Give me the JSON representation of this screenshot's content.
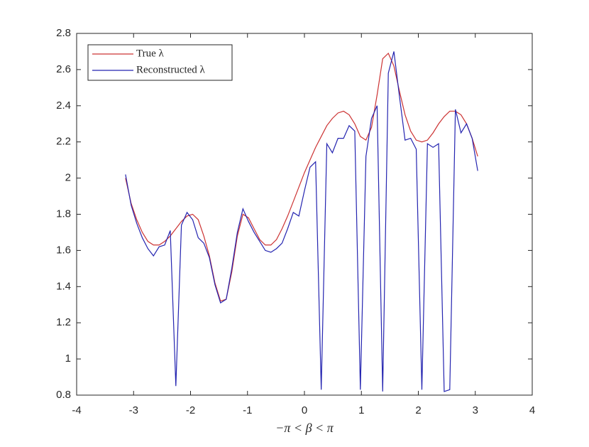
{
  "chart_data": {
    "type": "line",
    "xlabel": "−π < β < π",
    "x": [
      -3.142,
      -3.043,
      -2.945,
      -2.847,
      -2.749,
      -2.651,
      -2.552,
      -2.454,
      -2.356,
      -2.258,
      -2.16,
      -2.062,
      -1.963,
      -1.865,
      -1.767,
      -1.669,
      -1.571,
      -1.473,
      -1.374,
      -1.276,
      -1.178,
      -1.08,
      -0.982,
      -0.884,
      -0.785,
      -0.687,
      -0.589,
      -0.491,
      -0.393,
      -0.295,
      -0.196,
      -0.098,
      0,
      0.098,
      0.196,
      0.295,
      0.393,
      0.491,
      0.589,
      0.687,
      0.785,
      0.884,
      0.982,
      1.08,
      1.178,
      1.276,
      1.374,
      1.473,
      1.571,
      1.669,
      1.767,
      1.865,
      1.963,
      2.062,
      2.16,
      2.258,
      2.356,
      2.454,
      2.552,
      2.651,
      2.749,
      2.847,
      2.945,
      3.043
    ],
    "series": [
      {
        "name": "True λ",
        "color": "#cc3333",
        "values": [
          2.0,
          1.86,
          1.77,
          1.7,
          1.65,
          1.63,
          1.63,
          1.65,
          1.68,
          1.72,
          1.76,
          1.79,
          1.8,
          1.77,
          1.68,
          1.57,
          1.42,
          1.32,
          1.33,
          1.48,
          1.68,
          1.8,
          1.78,
          1.72,
          1.66,
          1.63,
          1.63,
          1.66,
          1.72,
          1.79,
          1.87,
          1.95,
          2.03,
          2.1,
          2.17,
          2.23,
          2.29,
          2.33,
          2.36,
          2.37,
          2.35,
          2.3,
          2.23,
          2.21,
          2.28,
          2.46,
          2.66,
          2.69,
          2.62,
          2.48,
          2.35,
          2.26,
          2.21,
          2.2,
          2.21,
          2.25,
          2.3,
          2.34,
          2.37,
          2.37,
          2.35,
          2.3,
          2.22,
          2.12
        ]
      },
      {
        "name": "Reconstructed λ",
        "color": "#2424b0",
        "values": [
          2.02,
          1.85,
          1.75,
          1.67,
          1.61,
          1.57,
          1.62,
          1.63,
          1.71,
          0.85,
          1.74,
          1.81,
          1.77,
          1.67,
          1.64,
          1.56,
          1.41,
          1.31,
          1.33,
          1.5,
          1.7,
          1.83,
          1.76,
          1.7,
          1.65,
          1.6,
          1.59,
          1.61,
          1.64,
          1.72,
          1.81,
          1.79,
          1.93,
          2.06,
          2.09,
          0.83,
          2.19,
          2.14,
          2.22,
          2.22,
          2.29,
          2.26,
          0.83,
          2.12,
          2.33,
          2.4,
          0.82,
          2.58,
          2.7,
          2.45,
          2.21,
          2.22,
          2.16,
          0.83,
          2.19,
          2.17,
          2.19,
          0.82,
          0.83,
          2.38,
          2.25,
          2.3,
          2.22,
          2.04
        ]
      }
    ],
    "xlim": [
      -4,
      4
    ],
    "xticks": [
      -4,
      -3,
      -2,
      -1,
      0,
      1,
      2,
      3,
      4
    ],
    "ylim": [
      0.8,
      2.8
    ],
    "yticks": [
      0.8,
      1,
      1.2,
      1.4,
      1.6,
      1.8,
      2,
      2.2,
      2.4,
      2.6,
      2.8
    ],
    "legend": "upper left"
  }
}
